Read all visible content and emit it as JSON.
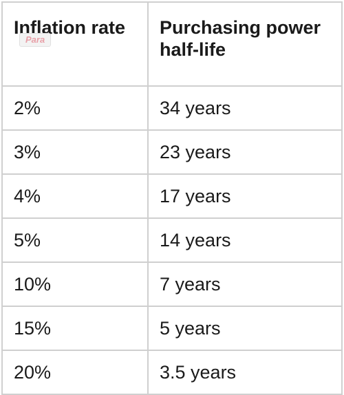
{
  "table": {
    "headers": [
      "Inflation rate",
      "Purchasing power half-life"
    ],
    "watermark": "Para",
    "rows": [
      {
        "rate": "2%",
        "half_life": "34 years"
      },
      {
        "rate": "3%",
        "half_life": "23 years"
      },
      {
        "rate": "4%",
        "half_life": "17 years"
      },
      {
        "rate": "5%",
        "half_life": "14 years"
      },
      {
        "rate": "10%",
        "half_life": "7 years"
      },
      {
        "rate": "15%",
        "half_life": "5 years"
      },
      {
        "rate": "20%",
        "half_life": "3.5 years"
      }
    ]
  }
}
